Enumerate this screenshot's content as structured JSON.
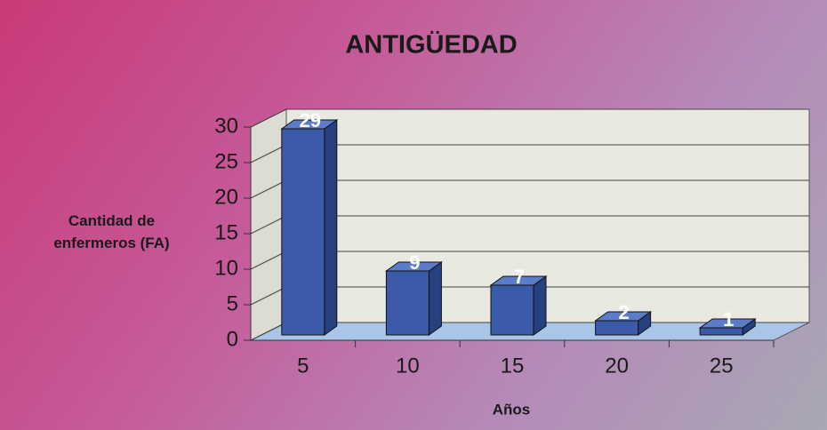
{
  "chart_data": {
    "type": "bar3d",
    "title": "ANTIGÜEDAD",
    "x_label": "Años",
    "y_label": "Cantidad de enfermeros (FA)",
    "categories": [
      "5",
      "10",
      "15",
      "20",
      "25"
    ],
    "values": [
      29,
      9,
      7,
      2,
      1
    ],
    "color": "#3b5aa8",
    "ylim": [
      0,
      30
    ],
    "yticks": [
      0,
      5,
      10,
      15,
      20,
      25,
      30
    ],
    "grid": true
  }
}
